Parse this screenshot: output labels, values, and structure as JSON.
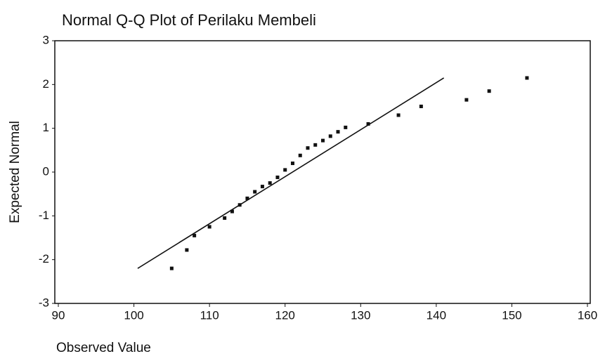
{
  "chart_data": {
    "type": "scatter",
    "title": "Normal Q-Q Plot of Perilaku Membeli",
    "x_label": "Observed Value",
    "y_label": "Expected Normal",
    "x": [
      105,
      107,
      108,
      110,
      112,
      113,
      114,
      115,
      116,
      117,
      118,
      119,
      120,
      121,
      122,
      123,
      124,
      125,
      126,
      127,
      128,
      131,
      135,
      138,
      144,
      147,
      152
    ],
    "values": [
      -2.2,
      -1.78,
      -1.45,
      -1.25,
      -1.05,
      -0.9,
      -0.75,
      -0.6,
      -0.45,
      -0.33,
      -0.25,
      -0.12,
      0.05,
      0.2,
      0.38,
      0.55,
      0.62,
      0.72,
      0.82,
      0.92,
      1.02,
      1.1,
      1.3,
      1.5,
      1.65,
      1.85,
      2.15
    ],
    "color": "#111111",
    "reference_line": {
      "x": [
        100.5,
        141
      ],
      "y": [
        -2.2,
        2.15
      ]
    },
    "xlim": [
      90,
      160
    ],
    "xticks": [
      90,
      100,
      110,
      120,
      130,
      140,
      150,
      160
    ],
    "ylim": [
      -3,
      3
    ],
    "yticks": [
      -3,
      -2,
      -1,
      0,
      1,
      2,
      3
    ]
  }
}
